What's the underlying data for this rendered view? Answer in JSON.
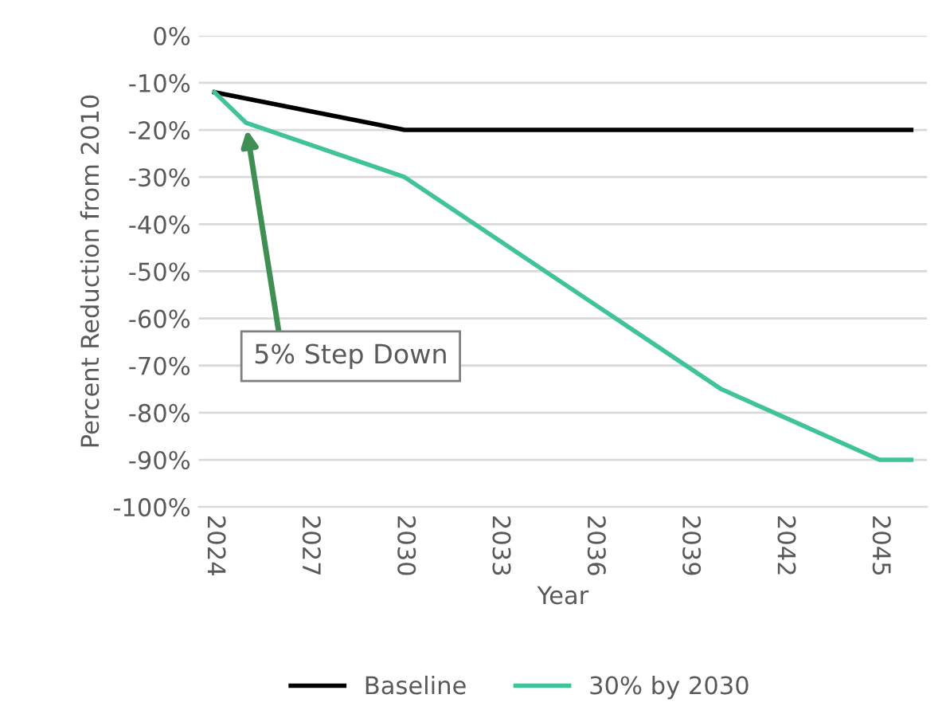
{
  "chart_data": {
    "type": "line",
    "xlabel": "Year",
    "ylabel": "Percent Reduction from 2010",
    "x": [
      2024,
      2025,
      2030,
      2040,
      2045,
      2046
    ],
    "series": [
      {
        "name": "Baseline",
        "color": "#000000",
        "x": [
          2024,
          2030,
          2046
        ],
        "values": [
          -12,
          -20,
          -20
        ]
      },
      {
        "name": "30% by 2030",
        "color": "#40c39a",
        "values": [
          -12,
          -18.5,
          -30,
          -75,
          -90,
          -90
        ]
      }
    ],
    "xlim": [
      2023.5,
      2046.5
    ],
    "xticks": [
      2024,
      2027,
      2030,
      2033,
      2036,
      2039,
      2042,
      2045
    ],
    "ylim": [
      -100,
      0
    ],
    "yticks": [
      {
        "value": -100,
        "label": "-100%"
      },
      {
        "value": -90,
        "label": "-90%"
      },
      {
        "value": -80,
        "label": "-80%"
      },
      {
        "value": -70,
        "label": "-70%"
      },
      {
        "value": -60,
        "label": "-60%"
      },
      {
        "value": -50,
        "label": "-50%"
      },
      {
        "value": -40,
        "label": "-40%"
      },
      {
        "value": -30,
        "label": "-30%"
      },
      {
        "value": -20,
        "label": "-20%"
      },
      {
        "value": -10,
        "label": "-10%"
      },
      {
        "value": 0,
        "label": "0%"
      }
    ],
    "annotations": [
      {
        "text": "5% Step Down",
        "x": 2025,
        "y": -19
      }
    ],
    "grid": "y",
    "legend": "bottom",
    "marker": "none",
    "line_style": "solid"
  }
}
